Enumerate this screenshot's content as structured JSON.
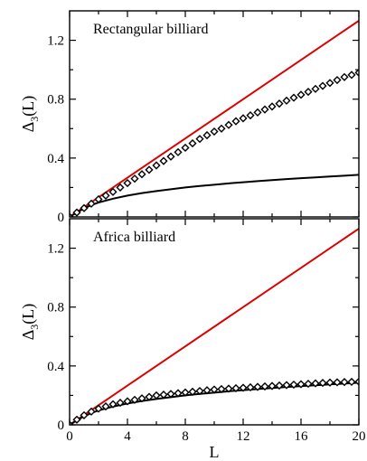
{
  "chart_data": [
    {
      "type": "line",
      "title": "",
      "annotation": "Rectangular billiard",
      "xlabel": "",
      "ylabel_main": "Δ",
      "ylabel_sub": "3",
      "ylabel_tail": "(L)",
      "xlim": [
        0,
        20
      ],
      "ylim": [
        0,
        1.4
      ],
      "xticks": [
        0,
        4,
        8,
        12,
        16,
        20
      ],
      "yticks": [
        0,
        0.4,
        0.8,
        1.2
      ],
      "show_xticklabels": false,
      "grid": false,
      "colors": {
        "poisson": "#dd0000",
        "goe": "#000000",
        "data": "#000000"
      },
      "series": [
        {
          "style": "line",
          "color": "#dd0000",
          "x": [
            0,
            20
          ],
          "y": [
            0,
            1.333
          ]
        },
        {
          "style": "line",
          "color": "#000000",
          "x": [
            0,
            0.5,
            1,
            1.5,
            2,
            3,
            4,
            5,
            6,
            7,
            8,
            9,
            10,
            11,
            12,
            13,
            14,
            15,
            16,
            17,
            18,
            19,
            20
          ],
          "y": [
            0,
            0.03,
            0.058,
            0.08,
            0.098,
            0.124,
            0.145,
            0.162,
            0.176,
            0.188,
            0.2,
            0.21,
            0.219,
            0.228,
            0.236,
            0.243,
            0.25,
            0.257,
            0.263,
            0.269,
            0.275,
            0.28,
            0.286
          ]
        },
        {
          "style": "diamond",
          "color": "#000000",
          "x": [
            0,
            0.5,
            1,
            1.5,
            2,
            2.5,
            3,
            3.5,
            4,
            4.5,
            5,
            5.5,
            6,
            6.5,
            7,
            7.5,
            8,
            8.5,
            9,
            9.5,
            10,
            10.5,
            11,
            11.5,
            12,
            12.5,
            13,
            13.5,
            14,
            14.5,
            15,
            15.5,
            16,
            16.5,
            17,
            17.5,
            18,
            18.5,
            19,
            19.5,
            20
          ],
          "y": [
            0.0,
            0.03,
            0.06,
            0.09,
            0.12,
            0.145,
            0.17,
            0.2,
            0.23,
            0.26,
            0.29,
            0.32,
            0.35,
            0.38,
            0.41,
            0.44,
            0.47,
            0.5,
            0.53,
            0.555,
            0.58,
            0.6,
            0.625,
            0.65,
            0.67,
            0.69,
            0.71,
            0.73,
            0.75,
            0.77,
            0.79,
            0.81,
            0.83,
            0.85,
            0.87,
            0.89,
            0.91,
            0.93,
            0.95,
            0.965,
            0.98
          ]
        }
      ]
    },
    {
      "type": "line",
      "title": "",
      "annotation": "Africa billiard",
      "xlabel": "L",
      "ylabel_main": "Δ",
      "ylabel_sub": "3",
      "ylabel_tail": "(L)",
      "xlim": [
        0,
        20
      ],
      "ylim": [
        0,
        1.4
      ],
      "xticks": [
        0,
        4,
        8,
        12,
        16,
        20
      ],
      "yticks": [
        0,
        0.4,
        0.8,
        1.2
      ],
      "show_xticklabels": true,
      "grid": false,
      "colors": {
        "poisson": "#dd0000",
        "goe": "#000000",
        "data": "#000000"
      },
      "series": [
        {
          "style": "line",
          "color": "#dd0000",
          "x": [
            0,
            20
          ],
          "y": [
            0,
            1.333
          ]
        },
        {
          "style": "line",
          "color": "#000000",
          "x": [
            0,
            0.5,
            1,
            1.5,
            2,
            3,
            4,
            5,
            6,
            7,
            8,
            9,
            10,
            11,
            12,
            13,
            14,
            15,
            16,
            17,
            18,
            19,
            20
          ],
          "y": [
            0,
            0.03,
            0.058,
            0.08,
            0.098,
            0.124,
            0.145,
            0.162,
            0.176,
            0.188,
            0.2,
            0.21,
            0.219,
            0.228,
            0.236,
            0.243,
            0.25,
            0.257,
            0.263,
            0.269,
            0.275,
            0.28,
            0.286
          ]
        },
        {
          "style": "diamond",
          "color": "#000000",
          "x": [
            0,
            0.5,
            1,
            1.5,
            2,
            2.5,
            3,
            3.5,
            4,
            4.5,
            5,
            5.5,
            6,
            6.5,
            7,
            7.5,
            8,
            8.5,
            9,
            9.5,
            10,
            10.5,
            11,
            11.5,
            12,
            12.5,
            13,
            13.5,
            14,
            14.5,
            15,
            15.5,
            16,
            16.5,
            17,
            17.5,
            18,
            18.5,
            19,
            19.5,
            20
          ],
          "y": [
            0.0,
            0.035,
            0.065,
            0.09,
            0.11,
            0.125,
            0.14,
            0.15,
            0.16,
            0.17,
            0.18,
            0.19,
            0.2,
            0.205,
            0.21,
            0.215,
            0.22,
            0.225,
            0.23,
            0.235,
            0.24,
            0.243,
            0.246,
            0.249,
            0.252,
            0.255,
            0.258,
            0.261,
            0.264,
            0.267,
            0.27,
            0.273,
            0.276,
            0.279,
            0.282,
            0.285,
            0.287,
            0.289,
            0.291,
            0.292,
            0.293
          ]
        }
      ]
    }
  ]
}
